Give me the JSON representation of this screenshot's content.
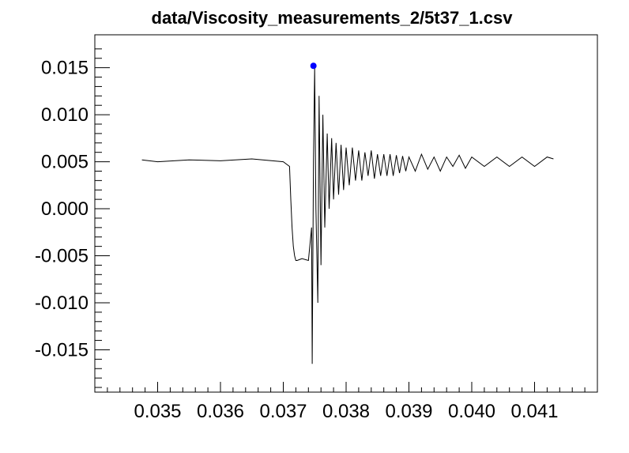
{
  "chart_data": {
    "type": "line",
    "title": "data/Viscosity_measurements_2/5t37_1.csv",
    "xlabel": "",
    "ylabel": "",
    "xlim": [
      0.034,
      0.042
    ],
    "ylim": [
      -0.0195,
      0.0185
    ],
    "x_ticks": [
      0.035,
      0.036,
      0.037,
      0.038,
      0.039,
      0.04,
      0.041
    ],
    "x_tick_labels": [
      "0.035",
      "0.036",
      "0.037",
      "0.038",
      "0.039",
      "0.040",
      "0.041"
    ],
    "y_ticks": [
      -0.015,
      -0.01,
      -0.005,
      0.0,
      0.005,
      0.01,
      0.015
    ],
    "y_tick_labels": [
      "-0.015",
      "-0.010",
      "-0.005",
      "0.000",
      "0.005",
      "0.010",
      "0.015"
    ],
    "grid": false,
    "legend": "none",
    "series": [
      {
        "color": "#000000",
        "x": [
          0.03475,
          0.035,
          0.0355,
          0.036,
          0.0365,
          0.037,
          0.0371,
          0.03712,
          0.03714,
          0.03716,
          0.03718,
          0.0372,
          0.03722,
          0.0373,
          0.0374,
          0.03745,
          0.03746,
          0.03748,
          0.0375,
          0.03752,
          0.03755,
          0.03757,
          0.0376,
          0.03763,
          0.03766,
          0.0377,
          0.03773,
          0.03777,
          0.0378,
          0.03784,
          0.03788,
          0.03792,
          0.03796,
          0.038,
          0.03805,
          0.0381,
          0.03815,
          0.0382,
          0.03825,
          0.0383,
          0.03835,
          0.0384,
          0.03845,
          0.0385,
          0.03855,
          0.0386,
          0.03865,
          0.0387,
          0.03875,
          0.0388,
          0.03885,
          0.0389,
          0.03895,
          0.039,
          0.0391,
          0.0392,
          0.0393,
          0.0394,
          0.0395,
          0.0396,
          0.0397,
          0.0398,
          0.0399,
          0.04,
          0.0402,
          0.0404,
          0.0406,
          0.0408,
          0.041,
          0.0412,
          0.0413
        ],
        "y": [
          0.0052,
          0.005,
          0.0052,
          0.0051,
          0.0053,
          0.005,
          0.0045,
          0.001,
          -0.002,
          -0.004,
          -0.005,
          -0.0055,
          -0.0055,
          -0.0053,
          -0.0055,
          -0.002,
          -0.0165,
          0.005,
          0.015,
          0.0,
          -0.01,
          0.012,
          -0.006,
          0.01,
          -0.002,
          0.008,
          0.0,
          0.0075,
          0.001,
          0.007,
          0.0015,
          0.0068,
          0.002,
          0.0065,
          0.0025,
          0.0065,
          0.003,
          0.0062,
          0.003,
          0.006,
          0.0035,
          0.0062,
          0.0032,
          0.0058,
          0.0035,
          0.0058,
          0.0035,
          0.0058,
          0.0035,
          0.0057,
          0.0038,
          0.0056,
          0.004,
          0.0055,
          0.004,
          0.0058,
          0.0042,
          0.0055,
          0.004,
          0.0055,
          0.0045,
          0.0057,
          0.0043,
          0.0055,
          0.0045,
          0.0055,
          0.0045,
          0.0055,
          0.0045,
          0.0055,
          0.0053
        ]
      }
    ],
    "marker": {
      "x": 0.03748,
      "y": 0.0152,
      "color": "#0000ff"
    }
  }
}
